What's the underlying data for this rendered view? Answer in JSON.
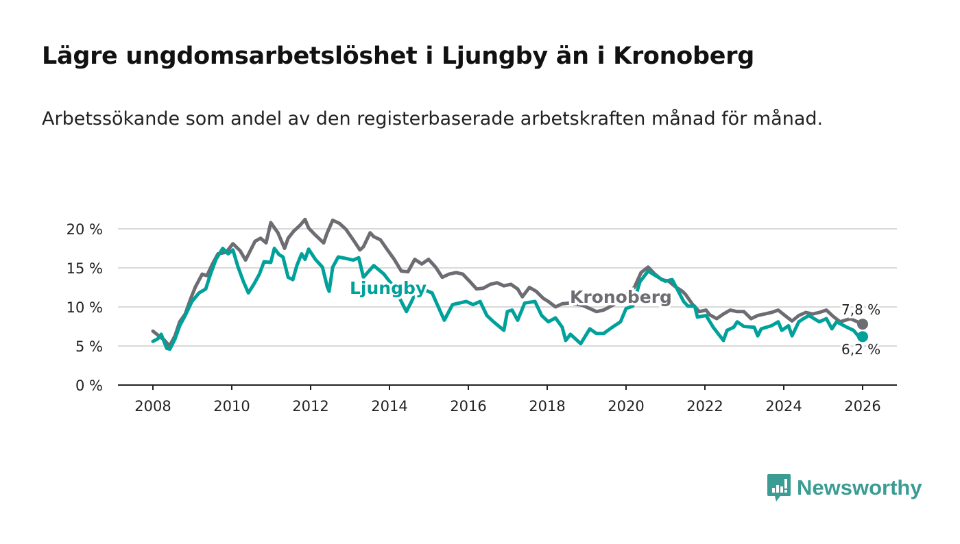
{
  "header": {
    "title": "Lägre ungdomsarbetslöshet i Ljungby än i Kronoberg",
    "subtitle": "Arbetssökande som andel av den registerbaserade arbetskraften månad för månad."
  },
  "brand": {
    "name": "Newsworthy",
    "color": "#3a9c93"
  },
  "chart_data": {
    "type": "line",
    "title": "Lägre ungdomsarbetslöshet i Ljungby än i Kronoberg",
    "xlabel": "",
    "ylabel": "",
    "xlim": [
      2007.75,
      2026.5
    ],
    "ylim": [
      0,
      20
    ],
    "grid": true,
    "x_ticks": [
      2008,
      2010,
      2012,
      2014,
      2016,
      2018,
      2020,
      2022,
      2024,
      2026
    ],
    "x_tick_labels": [
      "2008",
      "2010",
      "2012",
      "2014",
      "2016",
      "2018",
      "2020",
      "2022",
      "2024",
      "2026"
    ],
    "y_ticks": [
      0,
      5,
      10,
      15,
      20
    ],
    "y_tick_labels": [
      "0 %",
      "5 %",
      "10 %",
      "15 %",
      "20 %"
    ],
    "series": [
      {
        "name": "Kronoberg",
        "color": "#6d6c72",
        "end_label": "7,8 %",
        "points": [
          [
            2008.0,
            6.9
          ],
          [
            2008.3,
            5.7
          ],
          [
            2008.42,
            5.0
          ],
          [
            2008.56,
            6.3
          ],
          [
            2008.68,
            8.1
          ],
          [
            2008.82,
            9.1
          ],
          [
            2008.96,
            11.1
          ],
          [
            2009.08,
            12.6
          ],
          [
            2009.25,
            14.2
          ],
          [
            2009.37,
            14.0
          ],
          [
            2009.51,
            15.5
          ],
          [
            2009.65,
            16.8
          ],
          [
            2009.86,
            17.0
          ],
          [
            2010.03,
            18.1
          ],
          [
            2010.21,
            17.2
          ],
          [
            2010.35,
            16.0
          ],
          [
            2010.47,
            17.2
          ],
          [
            2010.59,
            18.4
          ],
          [
            2010.73,
            18.8
          ],
          [
            2010.87,
            18.2
          ],
          [
            2010.99,
            20.8
          ],
          [
            2011.17,
            19.5
          ],
          [
            2011.34,
            17.5
          ],
          [
            2011.43,
            18.8
          ],
          [
            2011.57,
            19.7
          ],
          [
            2011.74,
            20.5
          ],
          [
            2011.86,
            21.2
          ],
          [
            2011.95,
            20.1
          ],
          [
            2012.12,
            19.2
          ],
          [
            2012.33,
            18.2
          ],
          [
            2012.42,
            19.5
          ],
          [
            2012.56,
            21.1
          ],
          [
            2012.73,
            20.7
          ],
          [
            2012.9,
            19.9
          ],
          [
            2013.08,
            18.6
          ],
          [
            2013.25,
            17.3
          ],
          [
            2013.34,
            17.7
          ],
          [
            2013.51,
            19.5
          ],
          [
            2013.6,
            19.0
          ],
          [
            2013.77,
            18.6
          ],
          [
            2013.95,
            17.3
          ],
          [
            2014.12,
            16.1
          ],
          [
            2014.3,
            14.6
          ],
          [
            2014.47,
            14.5
          ],
          [
            2014.64,
            16.1
          ],
          [
            2014.82,
            15.5
          ],
          [
            2014.99,
            16.1
          ],
          [
            2015.17,
            15.1
          ],
          [
            2015.34,
            13.8
          ],
          [
            2015.51,
            14.2
          ],
          [
            2015.69,
            14.4
          ],
          [
            2015.86,
            14.2
          ],
          [
            2016.03,
            13.3
          ],
          [
            2016.21,
            12.3
          ],
          [
            2016.38,
            12.4
          ],
          [
            2016.56,
            12.9
          ],
          [
            2016.73,
            13.1
          ],
          [
            2016.9,
            12.7
          ],
          [
            2017.08,
            12.9
          ],
          [
            2017.25,
            12.3
          ],
          [
            2017.37,
            11.3
          ],
          [
            2017.55,
            12.5
          ],
          [
            2017.72,
            12.0
          ],
          [
            2017.9,
            11.1
          ],
          [
            2018.03,
            10.7
          ],
          [
            2018.21,
            10.0
          ],
          [
            2018.38,
            10.4
          ],
          [
            2018.56,
            10.5
          ],
          [
            2018.9,
            10.2
          ],
          [
            2019.25,
            9.4
          ],
          [
            2019.43,
            9.6
          ],
          [
            2019.69,
            10.3
          ],
          [
            2019.95,
            11.4
          ],
          [
            2020.21,
            12.5
          ],
          [
            2020.38,
            14.4
          ],
          [
            2020.56,
            15.1
          ],
          [
            2020.73,
            14.2
          ],
          [
            2020.9,
            13.5
          ],
          [
            2021.08,
            13.3
          ],
          [
            2021.25,
            12.6
          ],
          [
            2021.43,
            12.0
          ],
          [
            2021.51,
            11.6
          ],
          [
            2021.69,
            10.3
          ],
          [
            2021.86,
            9.4
          ],
          [
            2022.03,
            9.6
          ],
          [
            2022.12,
            9.0
          ],
          [
            2022.3,
            8.5
          ],
          [
            2022.47,
            9.1
          ],
          [
            2022.64,
            9.6
          ],
          [
            2022.82,
            9.4
          ],
          [
            2022.99,
            9.4
          ],
          [
            2023.17,
            8.5
          ],
          [
            2023.34,
            8.9
          ],
          [
            2023.51,
            9.1
          ],
          [
            2023.69,
            9.3
          ],
          [
            2023.86,
            9.6
          ],
          [
            2024.03,
            8.9
          ],
          [
            2024.21,
            8.2
          ],
          [
            2024.38,
            8.9
          ],
          [
            2024.56,
            9.3
          ],
          [
            2024.73,
            9.1
          ],
          [
            2024.9,
            9.3
          ],
          [
            2025.08,
            9.6
          ],
          [
            2025.25,
            8.8
          ],
          [
            2025.43,
            8.1
          ],
          [
            2025.69,
            8.5
          ],
          [
            2026.0,
            7.8
          ]
        ]
      },
      {
        "name": "Ljungby",
        "color": "#00a19a",
        "end_label": "6,2 %",
        "points": [
          [
            2008.0,
            5.6
          ],
          [
            2008.12,
            5.9
          ],
          [
            2008.21,
            6.5
          ],
          [
            2008.35,
            4.7
          ],
          [
            2008.43,
            4.6
          ],
          [
            2008.56,
            5.9
          ],
          [
            2008.68,
            7.6
          ],
          [
            2008.82,
            8.9
          ],
          [
            2008.99,
            10.7
          ],
          [
            2009.17,
            11.8
          ],
          [
            2009.34,
            12.3
          ],
          [
            2009.46,
            14.2
          ],
          [
            2009.6,
            16.1
          ],
          [
            2009.77,
            17.5
          ],
          [
            2009.91,
            16.8
          ],
          [
            2010.03,
            17.3
          ],
          [
            2010.16,
            15.1
          ],
          [
            2010.3,
            13.2
          ],
          [
            2010.42,
            11.8
          ],
          [
            2010.56,
            12.9
          ],
          [
            2010.7,
            14.2
          ],
          [
            2010.82,
            15.8
          ],
          [
            2010.99,
            15.7
          ],
          [
            2011.08,
            17.5
          ],
          [
            2011.2,
            16.7
          ],
          [
            2011.3,
            16.4
          ],
          [
            2011.43,
            13.8
          ],
          [
            2011.55,
            13.5
          ],
          [
            2011.65,
            15.3
          ],
          [
            2011.77,
            16.8
          ],
          [
            2011.86,
            16.1
          ],
          [
            2011.95,
            17.4
          ],
          [
            2012.12,
            16.1
          ],
          [
            2012.3,
            15.1
          ],
          [
            2012.42,
            12.6
          ],
          [
            2012.47,
            12.0
          ],
          [
            2012.56,
            15.1
          ],
          [
            2012.7,
            16.4
          ],
          [
            2012.9,
            16.2
          ],
          [
            2013.08,
            16.0
          ],
          [
            2013.22,
            16.3
          ],
          [
            2013.34,
            13.8
          ],
          [
            2013.6,
            15.3
          ],
          [
            2013.86,
            14.2
          ],
          [
            2014.12,
            12.5
          ],
          [
            2014.3,
            10.7
          ],
          [
            2014.43,
            9.4
          ],
          [
            2014.56,
            10.7
          ],
          [
            2014.73,
            12.5
          ],
          [
            2015.08,
            11.8
          ],
          [
            2015.39,
            8.3
          ],
          [
            2015.6,
            10.3
          ],
          [
            2015.77,
            10.5
          ],
          [
            2015.95,
            10.7
          ],
          [
            2016.12,
            10.3
          ],
          [
            2016.3,
            10.7
          ],
          [
            2016.47,
            8.9
          ],
          [
            2016.64,
            8.1
          ],
          [
            2016.9,
            7.0
          ],
          [
            2016.99,
            9.4
          ],
          [
            2017.11,
            9.6
          ],
          [
            2017.25,
            8.3
          ],
          [
            2017.43,
            10.5
          ],
          [
            2017.69,
            10.7
          ],
          [
            2017.86,
            8.9
          ],
          [
            2018.03,
            8.1
          ],
          [
            2018.21,
            8.6
          ],
          [
            2018.38,
            7.4
          ],
          [
            2018.47,
            5.7
          ],
          [
            2018.59,
            6.5
          ],
          [
            2018.85,
            5.3
          ],
          [
            2019.08,
            7.2
          ],
          [
            2019.25,
            6.6
          ],
          [
            2019.43,
            6.6
          ],
          [
            2019.65,
            7.4
          ],
          [
            2019.86,
            8.1
          ],
          [
            2020.0,
            9.8
          ],
          [
            2020.17,
            10.1
          ],
          [
            2020.35,
            13.2
          ],
          [
            2020.56,
            14.6
          ],
          [
            2020.82,
            13.8
          ],
          [
            2020.99,
            13.3
          ],
          [
            2021.17,
            13.5
          ],
          [
            2021.46,
            10.7
          ],
          [
            2021.57,
            10.1
          ],
          [
            2021.74,
            10.1
          ],
          [
            2021.81,
            8.7
          ],
          [
            2022.03,
            8.9
          ],
          [
            2022.21,
            7.4
          ],
          [
            2022.47,
            5.7
          ],
          [
            2022.56,
            7.0
          ],
          [
            2022.73,
            7.4
          ],
          [
            2022.82,
            8.1
          ],
          [
            2022.99,
            7.5
          ],
          [
            2023.25,
            7.4
          ],
          [
            2023.34,
            6.3
          ],
          [
            2023.43,
            7.2
          ],
          [
            2023.69,
            7.6
          ],
          [
            2023.86,
            8.1
          ],
          [
            2023.95,
            7.0
          ],
          [
            2024.12,
            7.6
          ],
          [
            2024.21,
            6.3
          ],
          [
            2024.38,
            8.1
          ],
          [
            2024.5,
            8.5
          ],
          [
            2024.64,
            8.9
          ],
          [
            2024.9,
            8.1
          ],
          [
            2025.08,
            8.5
          ],
          [
            2025.22,
            7.2
          ],
          [
            2025.34,
            8.1
          ],
          [
            2025.6,
            7.4
          ],
          [
            2025.77,
            7.0
          ],
          [
            2025.92,
            6.1
          ],
          [
            2026.0,
            6.2
          ]
        ]
      }
    ],
    "annotations": [
      {
        "text": "Ljungby",
        "series": "Ljungby"
      },
      {
        "text": "Kronoberg",
        "series": "Kronoberg"
      }
    ]
  }
}
